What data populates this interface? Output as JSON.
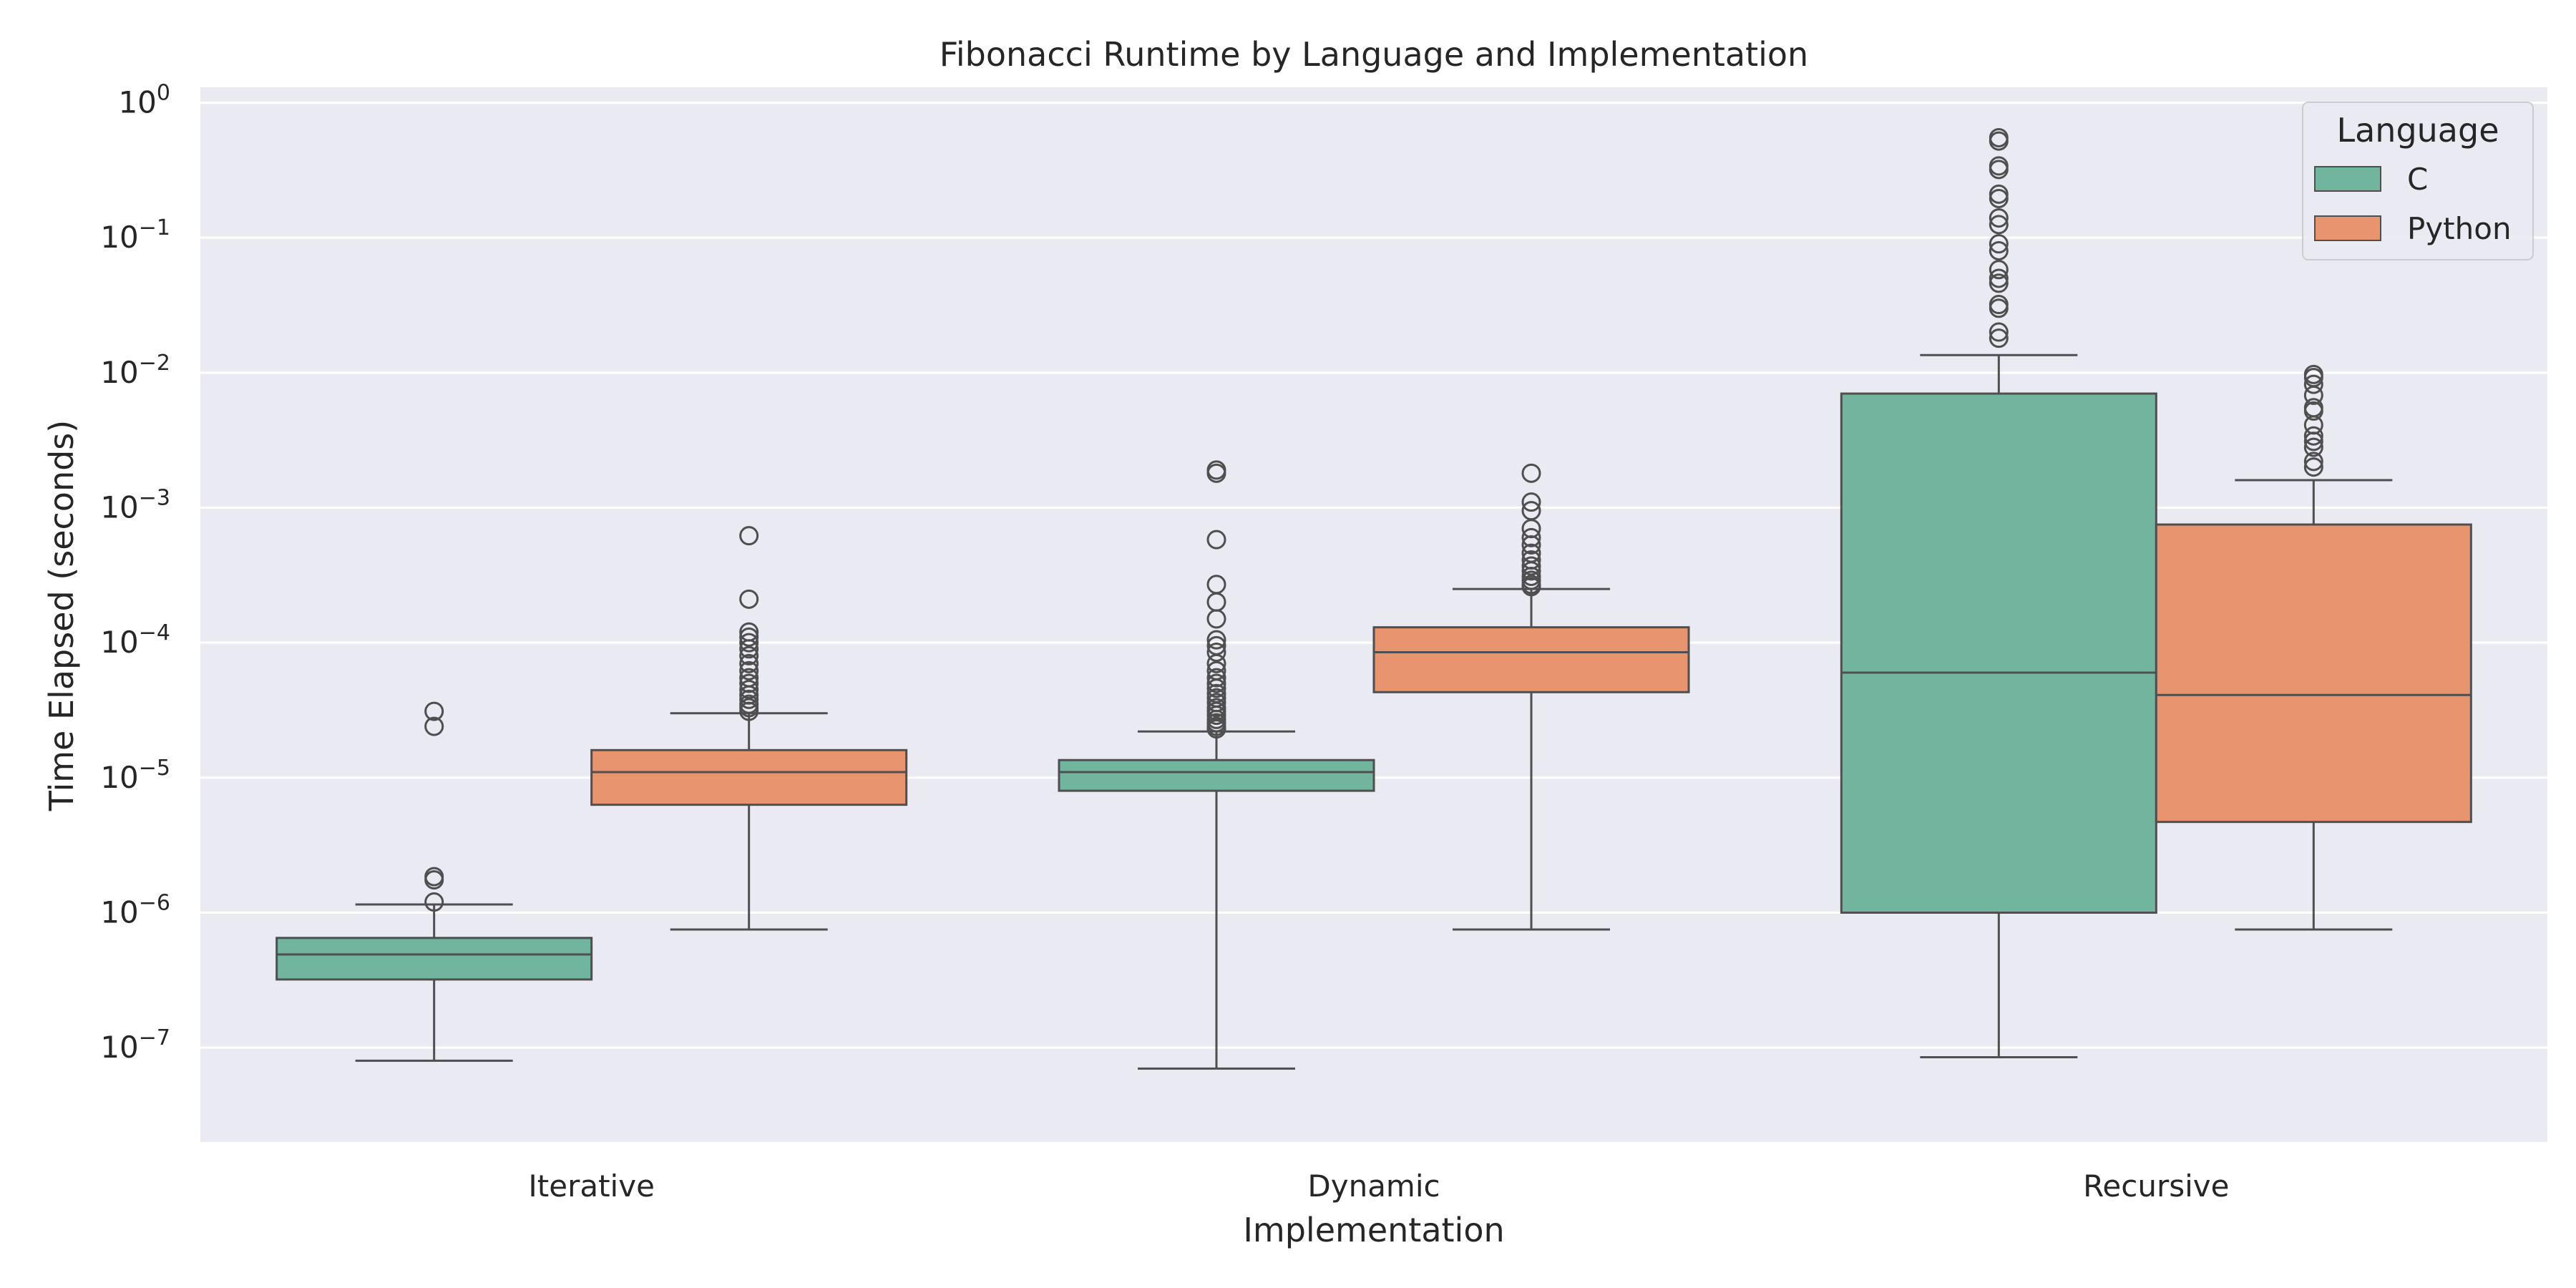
{
  "chart_data": {
    "type": "box",
    "title": "Fibonacci Runtime by Language and Implementation",
    "xlabel": "Implementation",
    "ylabel": "Time Elapsed (seconds)",
    "yscale": "log",
    "ylim": [
      2e-08,
      1.3
    ],
    "y_ticks": [
      {
        "value": 1,
        "base": "10",
        "exp": "0"
      },
      {
        "value": 0.1,
        "base": "10",
        "exp": "−1"
      },
      {
        "value": 0.01,
        "base": "10",
        "exp": "−2"
      },
      {
        "value": 0.001,
        "base": "10",
        "exp": "−3"
      },
      {
        "value": 0.0001,
        "base": "10",
        "exp": "−4"
      },
      {
        "value": 1e-05,
        "base": "10",
        "exp": "−5"
      },
      {
        "value": 1e-06,
        "base": "10",
        "exp": "−6"
      },
      {
        "value": 1e-07,
        "base": "10",
        "exp": "−7"
      }
    ],
    "grid": true,
    "legend": {
      "title": "Language",
      "placement": "top-right"
    },
    "categories": [
      "Iterative",
      "Dynamic",
      "Recursive"
    ],
    "series": [
      {
        "name": "C",
        "color": "#72b59f",
        "boxes": [
          {
            "whislo": 8e-08,
            "q1": 3.2e-07,
            "median": 4.9e-07,
            "q3": 6.5e-07,
            "whishi": 1.15e-06,
            "fliers": [
              3.1e-05,
              2.4e-05,
              1.85e-06,
              1.75e-06,
              1.2e-06
            ]
          },
          {
            "whislo": 7e-08,
            "q1": 8e-06,
            "median": 1.1e-05,
            "q3": 1.35e-05,
            "whishi": 2.2e-05,
            "fliers": [
              0.0019,
              0.0018,
              0.00058,
              0.00027,
              0.0002,
              0.00015,
              0.000105,
              9.5e-05,
              8.5e-05,
              7e-05,
              6.2e-05,
              5.5e-05,
              5e-05,
              4.6e-05,
              4.2e-05,
              3.9e-05,
              3.6e-05,
              3.3e-05,
              3.1e-05,
              2.9e-05,
              2.7e-05,
              2.55e-05,
              2.4e-05,
              2.3e-05
            ]
          },
          {
            "whislo": 8.5e-08,
            "q1": 1e-06,
            "median": 6e-05,
            "q3": 0.007,
            "whishi": 0.0135,
            "fliers": [
              0.55,
              0.52,
              0.34,
              0.32,
              0.21,
              0.195,
              0.14,
              0.125,
              0.09,
              0.08,
              0.058,
              0.05,
              0.046,
              0.032,
              0.03,
              0.02,
              0.018
            ]
          }
        ]
      },
      {
        "name": "Python",
        "color": "#e8956f",
        "boxes": [
          {
            "whislo": 7.5e-07,
            "q1": 6.3e-06,
            "median": 1.1e-05,
            "q3": 1.6e-05,
            "whishi": 3e-05,
            "fliers": [
              0.00062,
              0.00021,
              0.00012,
              0.00011,
              0.0001,
              9e-05,
              8e-05,
              7e-05,
              6.2e-05,
              5.5e-05,
              5e-05,
              4.5e-05,
              4.1e-05,
              3.8e-05,
              3.5e-05,
              3.3e-05,
              3.1e-05
            ]
          },
          {
            "whislo": 7.5e-07,
            "q1": 4.3e-05,
            "median": 8.5e-05,
            "q3": 0.00013,
            "whishi": 0.00025,
            "fliers": [
              0.0018,
              0.0011,
              0.00095,
              0.0007,
              0.0006,
              0.00053,
              0.00046,
              0.00041,
              0.00037,
              0.00034,
              0.00031,
              0.00029,
              0.00027,
              0.00026
            ]
          },
          {
            "whislo": 7.5e-07,
            "q1": 4.7e-06,
            "median": 4.1e-05,
            "q3": 0.00075,
            "whishi": 0.0016,
            "fliers": [
              0.0097,
              0.0092,
              0.0082,
              0.0068,
              0.0055,
              0.0052,
              0.0041,
              0.0034,
              0.0031,
              0.0028,
              0.0022,
              0.002
            ]
          }
        ]
      }
    ]
  }
}
